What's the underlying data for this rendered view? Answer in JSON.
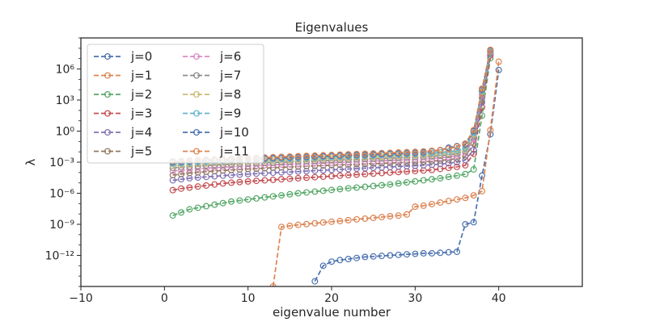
{
  "chart_data": {
    "type": "line",
    "title": "Eigenvalues",
    "xlabel": "eigenvalue number",
    "ylabel": "λ",
    "xlim": [
      -10,
      50
    ],
    "ylim_log10": [
      -15,
      9
    ],
    "yscale": "log",
    "grid": false,
    "legend_location": "upper-left",
    "legend_columns": 2,
    "x_ticks": [
      -10,
      0,
      10,
      20,
      30,
      40
    ],
    "x_tick_labels": [
      "−10",
      "0",
      "10",
      "20",
      "30",
      "40"
    ],
    "y_tick_exponents": [
      -12,
      -9,
      -6,
      -3,
      0,
      3,
      6
    ],
    "y_tick_labels": [
      "10⁻¹²",
      "10⁻⁹",
      "10⁻⁶",
      "10⁻³",
      "10⁰",
      "10³",
      "10⁶"
    ],
    "marker": "open-circle",
    "linestyle": "dashed",
    "series": [
      {
        "name": "j=0",
        "color": "#4c72b0",
        "x_range": [
          18,
          40
        ],
        "log10_values": [
          -14.5,
          -13.0,
          -12.6,
          -12.45,
          -12.35,
          -12.25,
          -12.15,
          -12.1,
          -12.05,
          -12.0,
          -11.95,
          -11.9,
          -11.85,
          -11.8,
          -11.8,
          -11.75,
          -11.7,
          -11.65,
          -9.0,
          -8.8,
          -4.3,
          -0.3,
          5.9
        ]
      },
      {
        "name": "j=1",
        "color": "#dd8452",
        "x_range": [
          13,
          40
        ],
        "log10_values": [
          -15,
          -9.25,
          -9.15,
          -9.05,
          -8.98,
          -8.9,
          -8.82,
          -8.75,
          -8.68,
          -8.6,
          -8.52,
          -8.45,
          -8.38,
          -8.3,
          -8.22,
          -8.15,
          -8.05,
          -7.3,
          -7.2,
          -7.05,
          -6.9,
          -6.75,
          -6.6,
          -6.45,
          -6.2,
          -5.8,
          0.1,
          6.7
        ]
      },
      {
        "name": "j=2",
        "color": "#55a868",
        "x_range": [
          1,
          40
        ],
        "log10_values": [
          -8.15,
          -7.85,
          -7.55,
          -7.4,
          -7.25,
          -7.1,
          -6.95,
          -6.8,
          -6.7,
          -6.6,
          -6.5,
          -6.4,
          -6.3,
          -6.2,
          -6.1,
          -6.0,
          -5.92,
          -5.84,
          -5.76,
          -5.68,
          -5.6,
          -5.52,
          -5.45,
          -5.38,
          -5.3,
          -5.22,
          -5.15,
          -5.05,
          -4.95,
          -4.85,
          -4.75,
          -4.65,
          -4.55,
          -4.42,
          -4.3,
          -4.15,
          -3.7,
          1.5,
          7.05
        ]
      },
      {
        "name": "j=3",
        "color": "#c44e52",
        "x_range": [
          1,
          40
        ],
        "log10_values": [
          -5.7,
          -5.55,
          -5.45,
          -5.35,
          -5.25,
          -5.15,
          -5.05,
          -4.98,
          -4.92,
          -4.86,
          -4.8,
          -4.75,
          -4.7,
          -4.65,
          -4.6,
          -4.55,
          -4.5,
          -4.45,
          -4.4,
          -4.35,
          -4.3,
          -4.25,
          -4.2,
          -4.15,
          -4.1,
          -4.05,
          -4.0,
          -3.95,
          -3.9,
          -3.85,
          -3.8,
          -3.75,
          -3.65,
          -3.55,
          -3.45,
          -3.3,
          -2.2,
          2.3,
          7.3
        ]
      },
      {
        "name": "j=4",
        "color": "#8172b3",
        "x_range": [
          1,
          40
        ],
        "log10_values": [
          -4.75,
          -4.65,
          -4.55,
          -4.48,
          -4.42,
          -4.36,
          -4.3,
          -4.25,
          -4.2,
          -4.15,
          -4.1,
          -4.06,
          -4.02,
          -3.98,
          -3.94,
          -3.9,
          -3.86,
          -3.82,
          -3.78,
          -3.74,
          -3.7,
          -3.66,
          -3.62,
          -3.58,
          -3.54,
          -3.5,
          -3.46,
          -3.42,
          -3.38,
          -3.34,
          -3.3,
          -3.25,
          -3.18,
          -3.1,
          -3.0,
          -2.8,
          -1.8,
          2.8,
          7.45
        ]
      },
      {
        "name": "j=5",
        "color": "#937860",
        "x_range": [
          1,
          40
        ],
        "log10_values": [
          -4.25,
          -4.15,
          -4.05,
          -3.98,
          -3.92,
          -3.86,
          -3.8,
          -3.75,
          -3.7,
          -3.66,
          -3.62,
          -3.58,
          -3.54,
          -3.5,
          -3.46,
          -3.42,
          -3.38,
          -3.35,
          -3.32,
          -3.29,
          -3.26,
          -3.23,
          -3.2,
          -3.17,
          -3.14,
          -3.11,
          -3.08,
          -3.05,
          -3.02,
          -2.99,
          -2.95,
          -2.9,
          -2.84,
          -2.76,
          -2.65,
          -2.45,
          -1.2,
          3.2,
          7.55
        ]
      },
      {
        "name": "j=6",
        "color": "#da8bc3",
        "x_range": [
          1,
          40
        ],
        "log10_values": [
          -3.85,
          -3.77,
          -3.7,
          -3.64,
          -3.58,
          -3.53,
          -3.48,
          -3.44,
          -3.4,
          -3.36,
          -3.32,
          -3.28,
          -3.25,
          -3.22,
          -3.19,
          -3.16,
          -3.13,
          -3.1,
          -3.07,
          -3.04,
          -3.01,
          -2.98,
          -2.95,
          -2.92,
          -2.89,
          -2.86,
          -2.83,
          -2.8,
          -2.77,
          -2.74,
          -2.7,
          -2.65,
          -2.58,
          -2.5,
          -2.38,
          -2.15,
          -0.8,
          3.5,
          7.6
        ]
      },
      {
        "name": "j=7",
        "color": "#8c8c8c",
        "x_range": [
          1,
          40
        ],
        "log10_values": [
          -3.55,
          -3.48,
          -3.42,
          -3.37,
          -3.32,
          -3.27,
          -3.23,
          -3.19,
          -3.15,
          -3.12,
          -3.09,
          -3.06,
          -3.03,
          -3.0,
          -2.97,
          -2.94,
          -2.91,
          -2.88,
          -2.85,
          -2.82,
          -2.79,
          -2.76,
          -2.73,
          -2.7,
          -2.67,
          -2.64,
          -2.61,
          -2.58,
          -2.55,
          -2.52,
          -2.48,
          -2.44,
          -2.38,
          -2.3,
          -2.18,
          -1.95,
          -0.5,
          3.7,
          7.65
        ]
      },
      {
        "name": "j=8",
        "color": "#ccb974",
        "x_range": [
          1,
          40
        ],
        "log10_values": [
          -3.35,
          -3.29,
          -3.23,
          -3.18,
          -3.13,
          -3.09,
          -3.05,
          -3.01,
          -2.98,
          -2.95,
          -2.92,
          -2.89,
          -2.86,
          -2.83,
          -2.8,
          -2.77,
          -2.74,
          -2.71,
          -2.68,
          -2.65,
          -2.62,
          -2.59,
          -2.56,
          -2.53,
          -2.5,
          -2.47,
          -2.44,
          -2.41,
          -2.38,
          -2.35,
          -2.31,
          -2.27,
          -2.21,
          -2.13,
          -2.02,
          -1.8,
          -0.3,
          3.8,
          7.7
        ]
      },
      {
        "name": "j=9",
        "color": "#64b5cd",
        "x_range": [
          1,
          40
        ],
        "log10_values": [
          -3.15,
          -3.1,
          -3.05,
          -3.0,
          -2.96,
          -2.92,
          -2.88,
          -2.85,
          -2.82,
          -2.79,
          -2.76,
          -2.73,
          -2.7,
          -2.67,
          -2.64,
          -2.61,
          -2.58,
          -2.55,
          -2.52,
          -2.49,
          -2.46,
          -2.43,
          -2.4,
          -2.37,
          -2.34,
          -2.31,
          -2.28,
          -2.25,
          -2.22,
          -2.19,
          -2.15,
          -2.11,
          -2.06,
          -1.98,
          -1.87,
          -1.65,
          -0.15,
          3.9,
          7.75
        ]
      },
      {
        "name": "j=10",
        "color": "#4c72b0",
        "x_range": [
          1,
          40
        ],
        "log10_values": [
          -3.0,
          -2.96,
          -2.92,
          -2.88,
          -2.84,
          -2.81,
          -2.78,
          -2.75,
          -2.72,
          -2.69,
          -2.66,
          -2.63,
          -2.6,
          -2.57,
          -2.54,
          -2.51,
          -2.48,
          -2.45,
          -2.42,
          -2.39,
          -2.36,
          -2.33,
          -2.3,
          -2.27,
          -2.24,
          -2.21,
          -2.18,
          -2.15,
          -2.12,
          -2.09,
          -2.05,
          -1.95,
          -1.85,
          -1.6,
          -1.45,
          -1.3,
          0.0,
          4.0,
          7.8
        ]
      },
      {
        "name": "j=11",
        "color": "#dd8452",
        "x_range": [
          1,
          40
        ],
        "log10_values": [
          -2.9,
          -2.86,
          -2.82,
          -2.78,
          -2.75,
          -2.72,
          -2.69,
          -2.66,
          -2.63,
          -2.6,
          -2.57,
          -2.54,
          -2.51,
          -2.48,
          -2.45,
          -2.42,
          -2.39,
          -2.36,
          -2.33,
          -2.3,
          -2.27,
          -2.24,
          -2.21,
          -2.18,
          -2.15,
          -2.12,
          -2.09,
          -2.06,
          -2.03,
          -2.0,
          -1.96,
          -1.9,
          -1.82,
          -1.7,
          -1.5,
          -1.2,
          0.1,
          4.1,
          7.85
        ]
      }
    ]
  }
}
